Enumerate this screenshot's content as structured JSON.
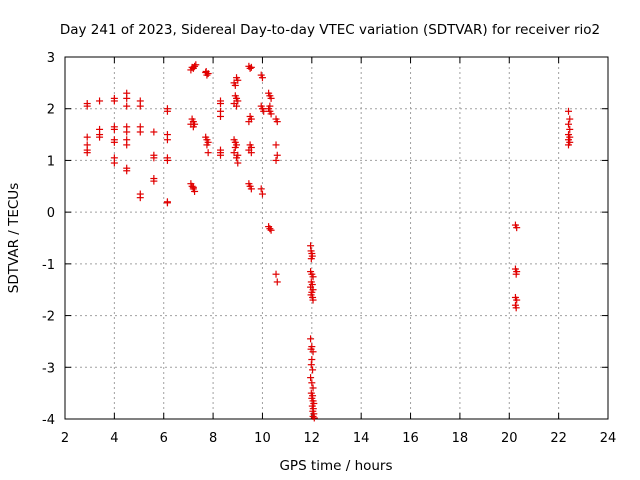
{
  "chart_data": {
    "type": "scatter",
    "title": "Day 241 of 2023, Sidereal Day-to-day VTEC variation (SDTVAR) for receiver rio2",
    "xlabel": "GPS time / hours",
    "ylabel": "SDTVAR / TECUs",
    "xlim": [
      2,
      24
    ],
    "ylim": [
      -4,
      3
    ],
    "xticks": [
      "2",
      "4",
      "6",
      "8",
      "10",
      "12",
      "14",
      "16",
      "18",
      "20",
      "22",
      "24"
    ],
    "yticks": [
      "-4",
      "-3",
      "-2",
      "-1",
      "0",
      "1",
      "2",
      "3"
    ],
    "grid": true,
    "marker": "plus",
    "color": "#e00000",
    "series": [
      {
        "name": "SDTVAR",
        "points": [
          [
            2.9,
            2.1
          ],
          [
            2.9,
            2.05
          ],
          [
            2.9,
            1.45
          ],
          [
            2.9,
            1.3
          ],
          [
            2.9,
            1.2
          ],
          [
            2.9,
            1.15
          ],
          [
            3.4,
            2.15
          ],
          [
            3.4,
            1.6
          ],
          [
            3.4,
            1.5
          ],
          [
            3.4,
            1.45
          ],
          [
            4.0,
            2.2
          ],
          [
            4.0,
            2.15
          ],
          [
            4.0,
            1.65
          ],
          [
            4.0,
            1.6
          ],
          [
            4.0,
            1.4
          ],
          [
            4.0,
            1.35
          ],
          [
            4.0,
            1.05
          ],
          [
            4.0,
            0.95
          ],
          [
            4.5,
            2.3
          ],
          [
            4.5,
            2.2
          ],
          [
            4.5,
            2.05
          ],
          [
            4.5,
            1.65
          ],
          [
            4.5,
            1.55
          ],
          [
            4.5,
            1.4
          ],
          [
            4.5,
            1.3
          ],
          [
            4.5,
            0.85
          ],
          [
            4.5,
            0.8
          ],
          [
            5.05,
            2.15
          ],
          [
            5.05,
            2.05
          ],
          [
            5.05,
            1.65
          ],
          [
            5.05,
            1.55
          ],
          [
            5.05,
            0.35
          ],
          [
            5.05,
            0.28
          ],
          [
            5.6,
            1.55
          ],
          [
            5.6,
            1.1
          ],
          [
            5.6,
            1.05
          ],
          [
            5.6,
            0.65
          ],
          [
            5.6,
            0.6
          ],
          [
            6.15,
            2.0
          ],
          [
            6.15,
            1.95
          ],
          [
            6.15,
            1.5
          ],
          [
            6.15,
            1.4
          ],
          [
            6.15,
            1.05
          ],
          [
            6.15,
            1.0
          ],
          [
            6.15,
            0.2
          ],
          [
            6.15,
            0.18
          ],
          [
            7.15,
            2.8
          ],
          [
            7.2,
            2.78
          ],
          [
            7.25,
            2.82
          ],
          [
            7.1,
            2.75
          ],
          [
            7.3,
            2.85
          ],
          [
            7.15,
            1.8
          ],
          [
            7.2,
            1.75
          ],
          [
            7.25,
            1.7
          ],
          [
            7.2,
            1.65
          ],
          [
            7.1,
            1.7
          ],
          [
            7.1,
            0.55
          ],
          [
            7.15,
            0.5
          ],
          [
            7.2,
            0.45
          ],
          [
            7.25,
            0.4
          ],
          [
            7.2,
            0.48
          ],
          [
            7.7,
            2.7
          ],
          [
            7.75,
            2.65
          ],
          [
            7.8,
            2.68
          ],
          [
            7.72,
            2.72
          ],
          [
            7.7,
            1.45
          ],
          [
            7.75,
            1.4
          ],
          [
            7.8,
            1.35
          ],
          [
            7.75,
            1.3
          ],
          [
            7.8,
            1.15
          ],
          [
            8.3,
            2.15
          ],
          [
            8.3,
            2.1
          ],
          [
            8.3,
            1.95
          ],
          [
            8.3,
            1.85
          ],
          [
            8.3,
            1.2
          ],
          [
            8.3,
            1.15
          ],
          [
            8.3,
            1.1
          ],
          [
            8.85,
            2.5
          ],
          [
            8.9,
            2.45
          ],
          [
            8.95,
            2.6
          ],
          [
            9.0,
            2.55
          ],
          [
            8.9,
            2.25
          ],
          [
            8.95,
            2.2
          ],
          [
            9.0,
            2.15
          ],
          [
            8.85,
            2.1
          ],
          [
            8.95,
            2.05
          ],
          [
            8.85,
            1.4
          ],
          [
            8.9,
            1.35
          ],
          [
            8.95,
            1.3
          ],
          [
            8.9,
            1.25
          ],
          [
            8.85,
            1.15
          ],
          [
            9.0,
            1.1
          ],
          [
            8.95,
            1.05
          ],
          [
            9.0,
            0.95
          ],
          [
            9.45,
            2.82
          ],
          [
            9.5,
            2.78
          ],
          [
            9.55,
            2.8
          ],
          [
            9.5,
            1.85
          ],
          [
            9.55,
            1.8
          ],
          [
            9.45,
            1.75
          ],
          [
            9.5,
            1.3
          ],
          [
            9.55,
            1.25
          ],
          [
            9.45,
            1.2
          ],
          [
            9.55,
            1.15
          ],
          [
            9.45,
            0.55
          ],
          [
            9.5,
            0.5
          ],
          [
            9.55,
            0.45
          ],
          [
            9.95,
            2.65
          ],
          [
            10.0,
            2.6
          ],
          [
            9.95,
            2.05
          ],
          [
            10.0,
            2.0
          ],
          [
            10.05,
            1.95
          ],
          [
            9.95,
            0.45
          ],
          [
            10.0,
            0.35
          ],
          [
            10.25,
            2.3
          ],
          [
            10.3,
            2.25
          ],
          [
            10.35,
            2.2
          ],
          [
            10.3,
            2.05
          ],
          [
            10.25,
            2.0
          ],
          [
            10.3,
            1.95
          ],
          [
            10.35,
            1.9
          ],
          [
            10.25,
            -0.28
          ],
          [
            10.3,
            -0.32
          ],
          [
            10.35,
            -0.35
          ],
          [
            10.55,
            1.8
          ],
          [
            10.6,
            1.75
          ],
          [
            10.55,
            1.3
          ],
          [
            10.6,
            1.1
          ],
          [
            10.55,
            1.0
          ],
          [
            10.55,
            -1.2
          ],
          [
            10.6,
            -1.35
          ],
          [
            11.95,
            -0.65
          ],
          [
            11.97,
            -0.75
          ],
          [
            12.0,
            -0.8
          ],
          [
            12.02,
            -0.85
          ],
          [
            11.98,
            -0.9
          ],
          [
            11.95,
            -1.15
          ],
          [
            12.0,
            -1.2
          ],
          [
            12.05,
            -1.25
          ],
          [
            11.98,
            -1.35
          ],
          [
            12.02,
            -1.4
          ],
          [
            11.95,
            -1.45
          ],
          [
            12.05,
            -1.5
          ],
          [
            12.0,
            -1.55
          ],
          [
            11.97,
            -1.6
          ],
          [
            12.03,
            -1.65
          ],
          [
            12.05,
            -1.7
          ],
          [
            11.95,
            -2.45
          ],
          [
            12.0,
            -2.6
          ],
          [
            11.97,
            -2.65
          ],
          [
            12.05,
            -2.7
          ],
          [
            12.0,
            -2.85
          ],
          [
            11.98,
            -2.95
          ],
          [
            12.03,
            -3.05
          ],
          [
            11.95,
            -3.2
          ],
          [
            12.0,
            -3.3
          ],
          [
            12.05,
            -3.4
          ],
          [
            11.98,
            -3.5
          ],
          [
            12.03,
            -3.55
          ],
          [
            12.0,
            -3.6
          ],
          [
            12.05,
            -3.65
          ],
          [
            12.08,
            -3.7
          ],
          [
            12.02,
            -3.75
          ],
          [
            12.06,
            -3.8
          ],
          [
            12.04,
            -3.85
          ],
          [
            12.08,
            -3.9
          ],
          [
            12.05,
            -3.95
          ],
          [
            12.1,
            -3.98
          ],
          [
            20.25,
            -0.25
          ],
          [
            20.3,
            -0.3
          ],
          [
            20.25,
            -1.1
          ],
          [
            20.3,
            -1.15
          ],
          [
            20.28,
            -1.2
          ],
          [
            20.25,
            -1.65
          ],
          [
            20.3,
            -1.7
          ],
          [
            20.25,
            -1.8
          ],
          [
            20.28,
            -1.85
          ],
          [
            22.4,
            1.95
          ],
          [
            22.45,
            1.8
          ],
          [
            22.4,
            1.7
          ],
          [
            22.45,
            1.6
          ],
          [
            22.4,
            1.5
          ],
          [
            22.45,
            1.45
          ],
          [
            22.4,
            1.4
          ],
          [
            22.45,
            1.35
          ],
          [
            22.4,
            1.3
          ]
        ]
      }
    ]
  }
}
